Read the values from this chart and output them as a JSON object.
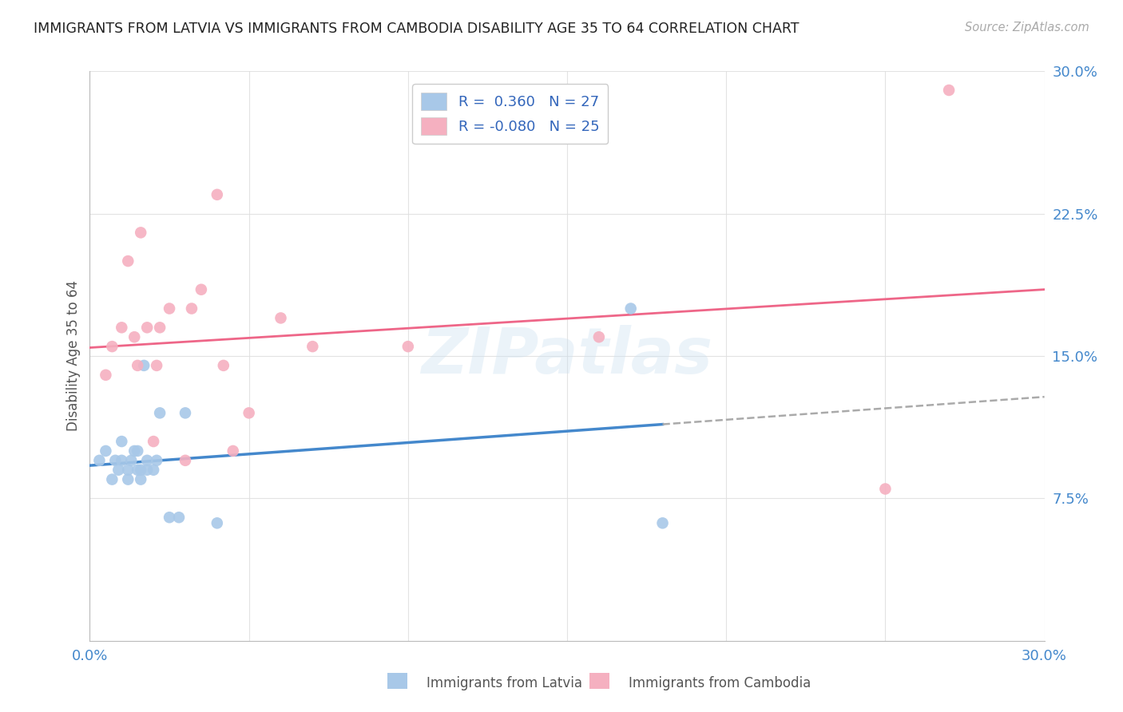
{
  "title": "IMMIGRANTS FROM LATVIA VS IMMIGRANTS FROM CAMBODIA DISABILITY AGE 35 TO 64 CORRELATION CHART",
  "source": "Source: ZipAtlas.com",
  "ylabel": "Disability Age 35 to 64",
  "xlim": [
    0.0,
    0.3
  ],
  "ylim": [
    0.0,
    0.3
  ],
  "xticks": [
    0.0,
    0.05,
    0.1,
    0.15,
    0.2,
    0.25,
    0.3
  ],
  "yticks": [
    0.0,
    0.075,
    0.15,
    0.225,
    0.3
  ],
  "xticklabels_show": [
    "0.0%",
    "30.0%"
  ],
  "yticklabels": [
    "",
    "7.5%",
    "15.0%",
    "22.5%",
    "30.0%"
  ],
  "latvia_color": "#a8c8e8",
  "cambodia_color": "#f5b0c0",
  "latvia_line_color": "#4488cc",
  "cambodia_line_color": "#ee6688",
  "watermark": "ZIPatlas",
  "latvia_scatter_x": [
    0.003,
    0.005,
    0.007,
    0.008,
    0.009,
    0.01,
    0.01,
    0.012,
    0.012,
    0.013,
    0.014,
    0.015,
    0.015,
    0.016,
    0.016,
    0.017,
    0.018,
    0.018,
    0.02,
    0.021,
    0.022,
    0.025,
    0.028,
    0.03,
    0.04,
    0.17,
    0.18
  ],
  "latvia_scatter_y": [
    0.095,
    0.1,
    0.085,
    0.095,
    0.09,
    0.095,
    0.105,
    0.085,
    0.09,
    0.095,
    0.1,
    0.09,
    0.1,
    0.085,
    0.09,
    0.145,
    0.09,
    0.095,
    0.09,
    0.095,
    0.12,
    0.065,
    0.065,
    0.12,
    0.062,
    0.175,
    0.062
  ],
  "cambodia_scatter_x": [
    0.005,
    0.007,
    0.01,
    0.012,
    0.014,
    0.015,
    0.016,
    0.018,
    0.02,
    0.021,
    0.022,
    0.025,
    0.03,
    0.032,
    0.035,
    0.04,
    0.042,
    0.045,
    0.05,
    0.06,
    0.07,
    0.1,
    0.16,
    0.25,
    0.27
  ],
  "cambodia_scatter_y": [
    0.14,
    0.155,
    0.165,
    0.2,
    0.16,
    0.145,
    0.215,
    0.165,
    0.105,
    0.145,
    0.165,
    0.175,
    0.095,
    0.175,
    0.185,
    0.235,
    0.145,
    0.1,
    0.12,
    0.17,
    0.155,
    0.155,
    0.16,
    0.08,
    0.29
  ],
  "legend1_text": "R =  0.360   N = 27",
  "legend2_text": "R = -0.080   N = 25",
  "legend_text_color": "#3366bb",
  "legend_label_color": "#333333"
}
